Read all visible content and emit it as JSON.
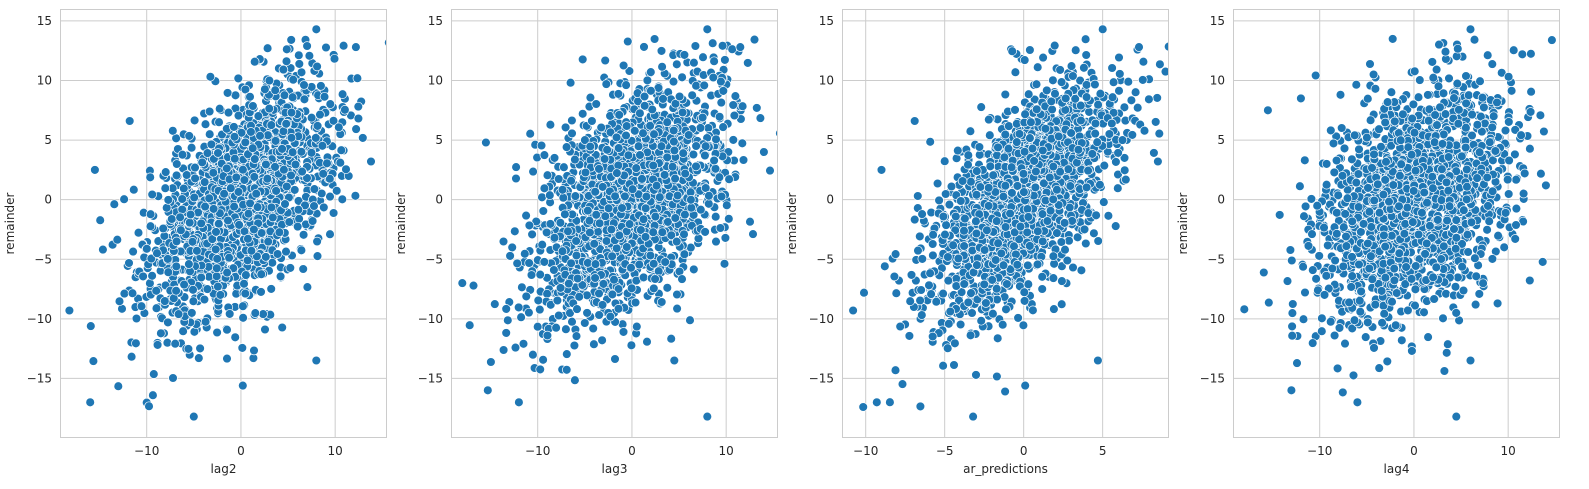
{
  "figure": {
    "background": "#ffffff"
  },
  "style": {
    "axes_face": "#ffffff",
    "grid_color": "#cccccc",
    "spine_color": "#cccccc",
    "point_fill": "#1f77b4",
    "point_edge": "#ffffff"
  },
  "chart_data": [
    {
      "type": "scatter",
      "title": "",
      "xlabel": "lag2",
      "ylabel": "remainder",
      "xlim": [
        -19.2,
        15.5
      ],
      "ylim": [
        -20,
        16
      ],
      "xticks": [
        -10,
        0,
        10
      ],
      "xtick_labels": [
        "−10",
        "0",
        "10"
      ],
      "yticks": [
        -15,
        -10,
        -5,
        0,
        5,
        10,
        15
      ],
      "ytick_labels": [
        "−15",
        "−10",
        "−5",
        "0",
        "5",
        "10",
        "15"
      ],
      "grid": true,
      "legend": "none",
      "correlation": 0.55,
      "x_mean": 0,
      "x_sd": 5.0,
      "y_mean": 0,
      "y_sd": 5.0,
      "n_points": 1800,
      "notable_points": [
        [
          -18.2,
          -9.3
        ],
        [
          -16.0,
          -17.0
        ],
        [
          -15.5,
          2.5
        ],
        [
          8.0,
          14.3
        ],
        [
          13.8,
          3.2
        ],
        [
          -5.0,
          -18.2
        ],
        [
          8.0,
          -13.5
        ],
        [
          0.2,
          -15.6
        ],
        [
          -11.8,
          6.6
        ],
        [
          12.2,
          12.8
        ]
      ]
    },
    {
      "type": "scatter",
      "title": "",
      "xlabel": "lag3",
      "ylabel": "remainder",
      "xlim": [
        -19.2,
        15.5
      ],
      "ylim": [
        -20,
        16
      ],
      "xticks": [
        -10,
        0,
        10
      ],
      "xtick_labels": [
        "−10",
        "0",
        "10"
      ],
      "yticks": [
        -15,
        -10,
        -5,
        0,
        5,
        10,
        15
      ],
      "ytick_labels": [
        "−15",
        "−10",
        "−5",
        "0",
        "5",
        "10",
        "15"
      ],
      "grid": true,
      "legend": "none",
      "correlation": 0.45,
      "x_mean": 0,
      "x_sd": 5.0,
      "y_mean": 0,
      "y_sd": 5.0,
      "n_points": 1800,
      "notable_points": [
        [
          -18.0,
          -7.0
        ],
        [
          -15.5,
          4.8
        ],
        [
          -15.3,
          -16.0
        ],
        [
          8.0,
          14.3
        ],
        [
          14.0,
          4.0
        ],
        [
          8.0,
          -18.2
        ],
        [
          4.5,
          -13.5
        ],
        [
          11.5,
          12.8
        ],
        [
          -12.0,
          -17.0
        ]
      ]
    },
    {
      "type": "scatter",
      "title": "",
      "xlabel": "ar_predictions",
      "ylabel": "remainder",
      "xlim": [
        -11.5,
        9.2
      ],
      "ylim": [
        -20,
        16
      ],
      "xticks": [
        -10,
        -5,
        0,
        5
      ],
      "xtick_labels": [
        "−10",
        "−5",
        "0",
        "5"
      ],
      "yticks": [
        -15,
        -10,
        -5,
        0,
        5,
        10,
        15
      ],
      "ytick_labels": [
        "−15",
        "−10",
        "−5",
        "0",
        "5",
        "10",
        "15"
      ],
      "grid": true,
      "legend": "none",
      "correlation": 0.6,
      "x_mean": 0,
      "x_sd": 3.0,
      "y_mean": 0,
      "y_sd": 5.0,
      "n_points": 1800,
      "notable_points": [
        [
          -10.8,
          -9.3
        ],
        [
          -9.3,
          -17.0
        ],
        [
          -9.0,
          2.5
        ],
        [
          5.0,
          14.3
        ],
        [
          8.5,
          3.2
        ],
        [
          -3.2,
          -18.2
        ],
        [
          4.7,
          -13.5
        ],
        [
          0.1,
          -15.6
        ],
        [
          -6.9,
          6.6
        ],
        [
          7.3,
          12.8
        ]
      ]
    },
    {
      "type": "scatter",
      "title": "",
      "xlabel": "lag4",
      "ylabel": "remainder",
      "xlim": [
        -19.2,
        15.5
      ],
      "ylim": [
        -20,
        16
      ],
      "xticks": [
        -10,
        0,
        10
      ],
      "xtick_labels": [
        "−10",
        "0",
        "10"
      ],
      "yticks": [
        -15,
        -10,
        -5,
        0,
        5,
        10,
        15
      ],
      "ytick_labels": [
        "−15",
        "−10",
        "−5",
        "0",
        "5",
        "10",
        "15"
      ],
      "grid": true,
      "legend": "none",
      "correlation": 0.35,
      "x_mean": 0,
      "x_sd": 5.0,
      "y_mean": 0,
      "y_sd": 5.0,
      "n_points": 1800,
      "notable_points": [
        [
          -18.0,
          -9.2
        ],
        [
          -15.5,
          7.5
        ],
        [
          -12.0,
          8.5
        ],
        [
          6.0,
          14.3
        ],
        [
          14.0,
          1.2
        ],
        [
          4.5,
          -18.2
        ],
        [
          6.0,
          -13.5
        ],
        [
          -6.0,
          -17.0
        ],
        [
          -13.0,
          -16.0
        ],
        [
          11.5,
          12.2
        ]
      ]
    }
  ]
}
